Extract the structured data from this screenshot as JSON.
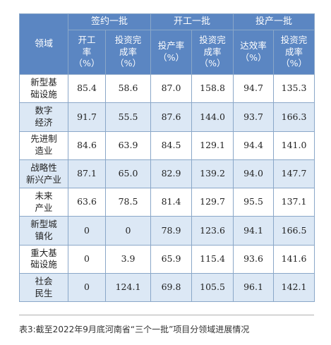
{
  "table": {
    "corner_label": "领域",
    "groups": [
      "签约一批",
      "开工一批",
      "投产一批"
    ],
    "sub_headers": [
      [
        "开工",
        "率",
        "（%）"
      ],
      [
        "投资完",
        "成率",
        "（%）"
      ],
      [
        "投产率",
        "（%）"
      ],
      [
        "投资完",
        "成率",
        "（%）"
      ],
      [
        "达效率",
        "（%）"
      ],
      [
        "投资完",
        "成率",
        "（%）"
      ]
    ],
    "rows": [
      {
        "name": [
          "新型基",
          "础设施"
        ],
        "values": [
          "85.4",
          "58.6",
          "87.0",
          "158.8",
          "94.7",
          "135.3"
        ]
      },
      {
        "name": [
          "数字",
          "经济"
        ],
        "values": [
          "91.7",
          "55.5",
          "87.6",
          "144.0",
          "93.7",
          "166.3"
        ]
      },
      {
        "name": [
          "先进制",
          "造业"
        ],
        "values": [
          "84.6",
          "63.9",
          "84.5",
          "129.1",
          "94.4",
          "141.0"
        ]
      },
      {
        "name": [
          "战略性",
          "新兴产业"
        ],
        "values": [
          "87.1",
          "65.0",
          "82.9",
          "139.2",
          "94.0",
          "147.7"
        ]
      },
      {
        "name": [
          "未来",
          "产业"
        ],
        "values": [
          "63.6",
          "78.5",
          "81.4",
          "129.7",
          "95.5",
          "137.1"
        ]
      },
      {
        "name": [
          "新型城",
          "镇化"
        ],
        "values": [
          "0",
          "0",
          "78.9",
          "123.6",
          "94.1",
          "166.5"
        ]
      },
      {
        "name": [
          "重大基",
          "础设施"
        ],
        "values": [
          "0",
          "3.9",
          "65.9",
          "115.4",
          "93.6",
          "141.6"
        ]
      },
      {
        "name": [
          "社会",
          "民生"
        ],
        "values": [
          "0",
          "124.1",
          "69.8",
          "105.5",
          "96.1",
          "142.1"
        ]
      }
    ]
  },
  "caption": "表3:截至2022年9月底河南省“三个一批”项目分领域进展情况",
  "colors": {
    "header_bg": "#5b86c2",
    "header_text": "#ffffff",
    "stripe_bg": "#dce8f5",
    "border": "#8aa7c8"
  }
}
